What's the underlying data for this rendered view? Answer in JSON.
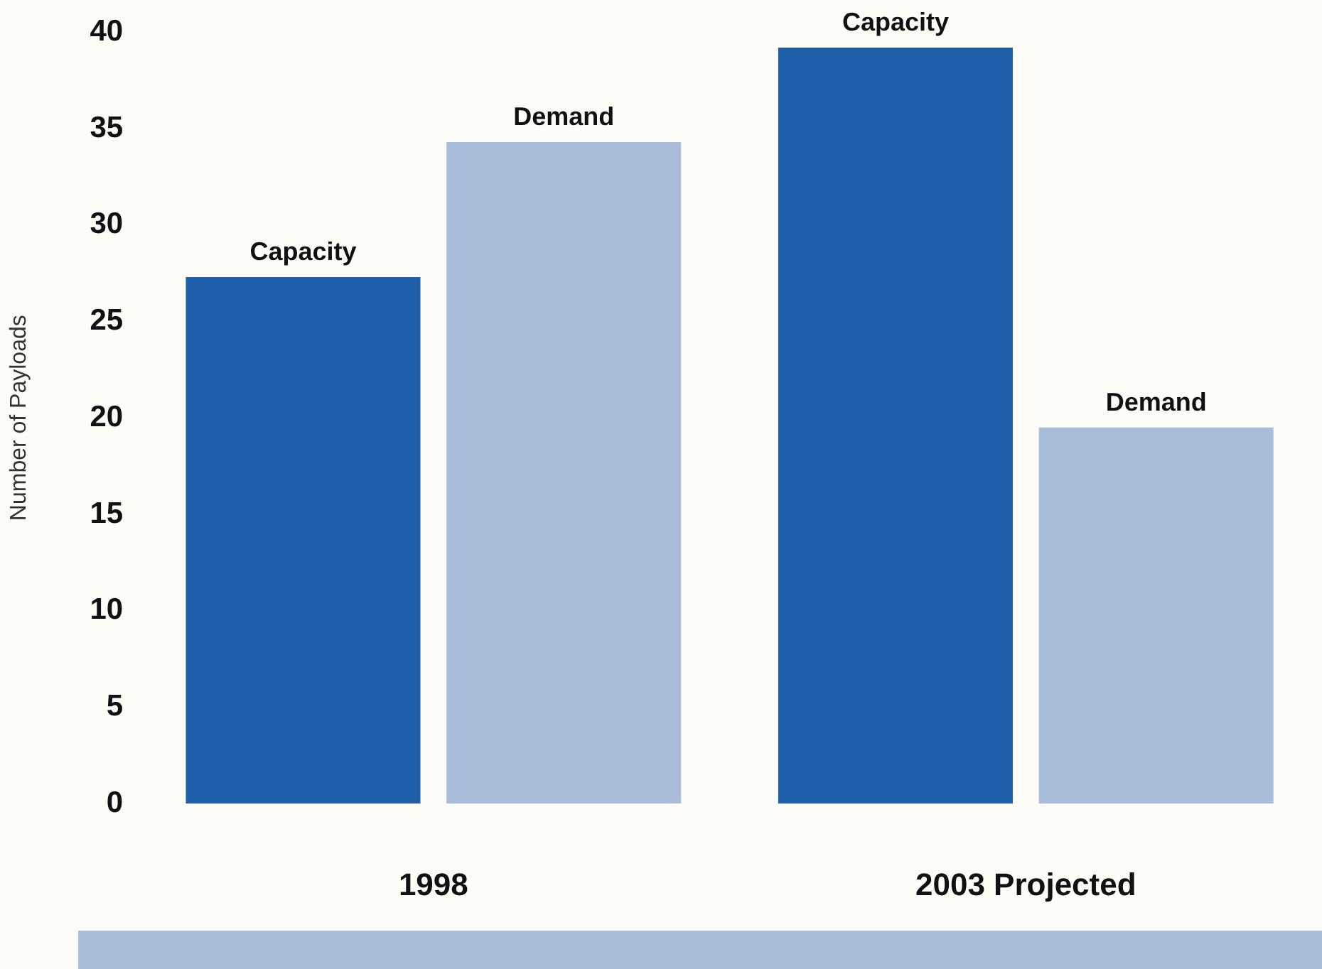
{
  "chart_data": {
    "type": "bar",
    "ylabel": "Number of Payloads",
    "categories": [
      "1998",
      "2003 Projected"
    ],
    "series": [
      {
        "name": "Capacity",
        "color": "#1f5ea8",
        "values": [
          27.3,
          39.2
        ]
      },
      {
        "name": "Demand",
        "color": "#a9bcd9",
        "values": [
          34.3,
          19.5
        ]
      }
    ],
    "ylim": [
      0,
      40
    ],
    "yticks": [
      0,
      5,
      10,
      15,
      20,
      25,
      30,
      35,
      40
    ],
    "grid": false,
    "legend": false
  }
}
